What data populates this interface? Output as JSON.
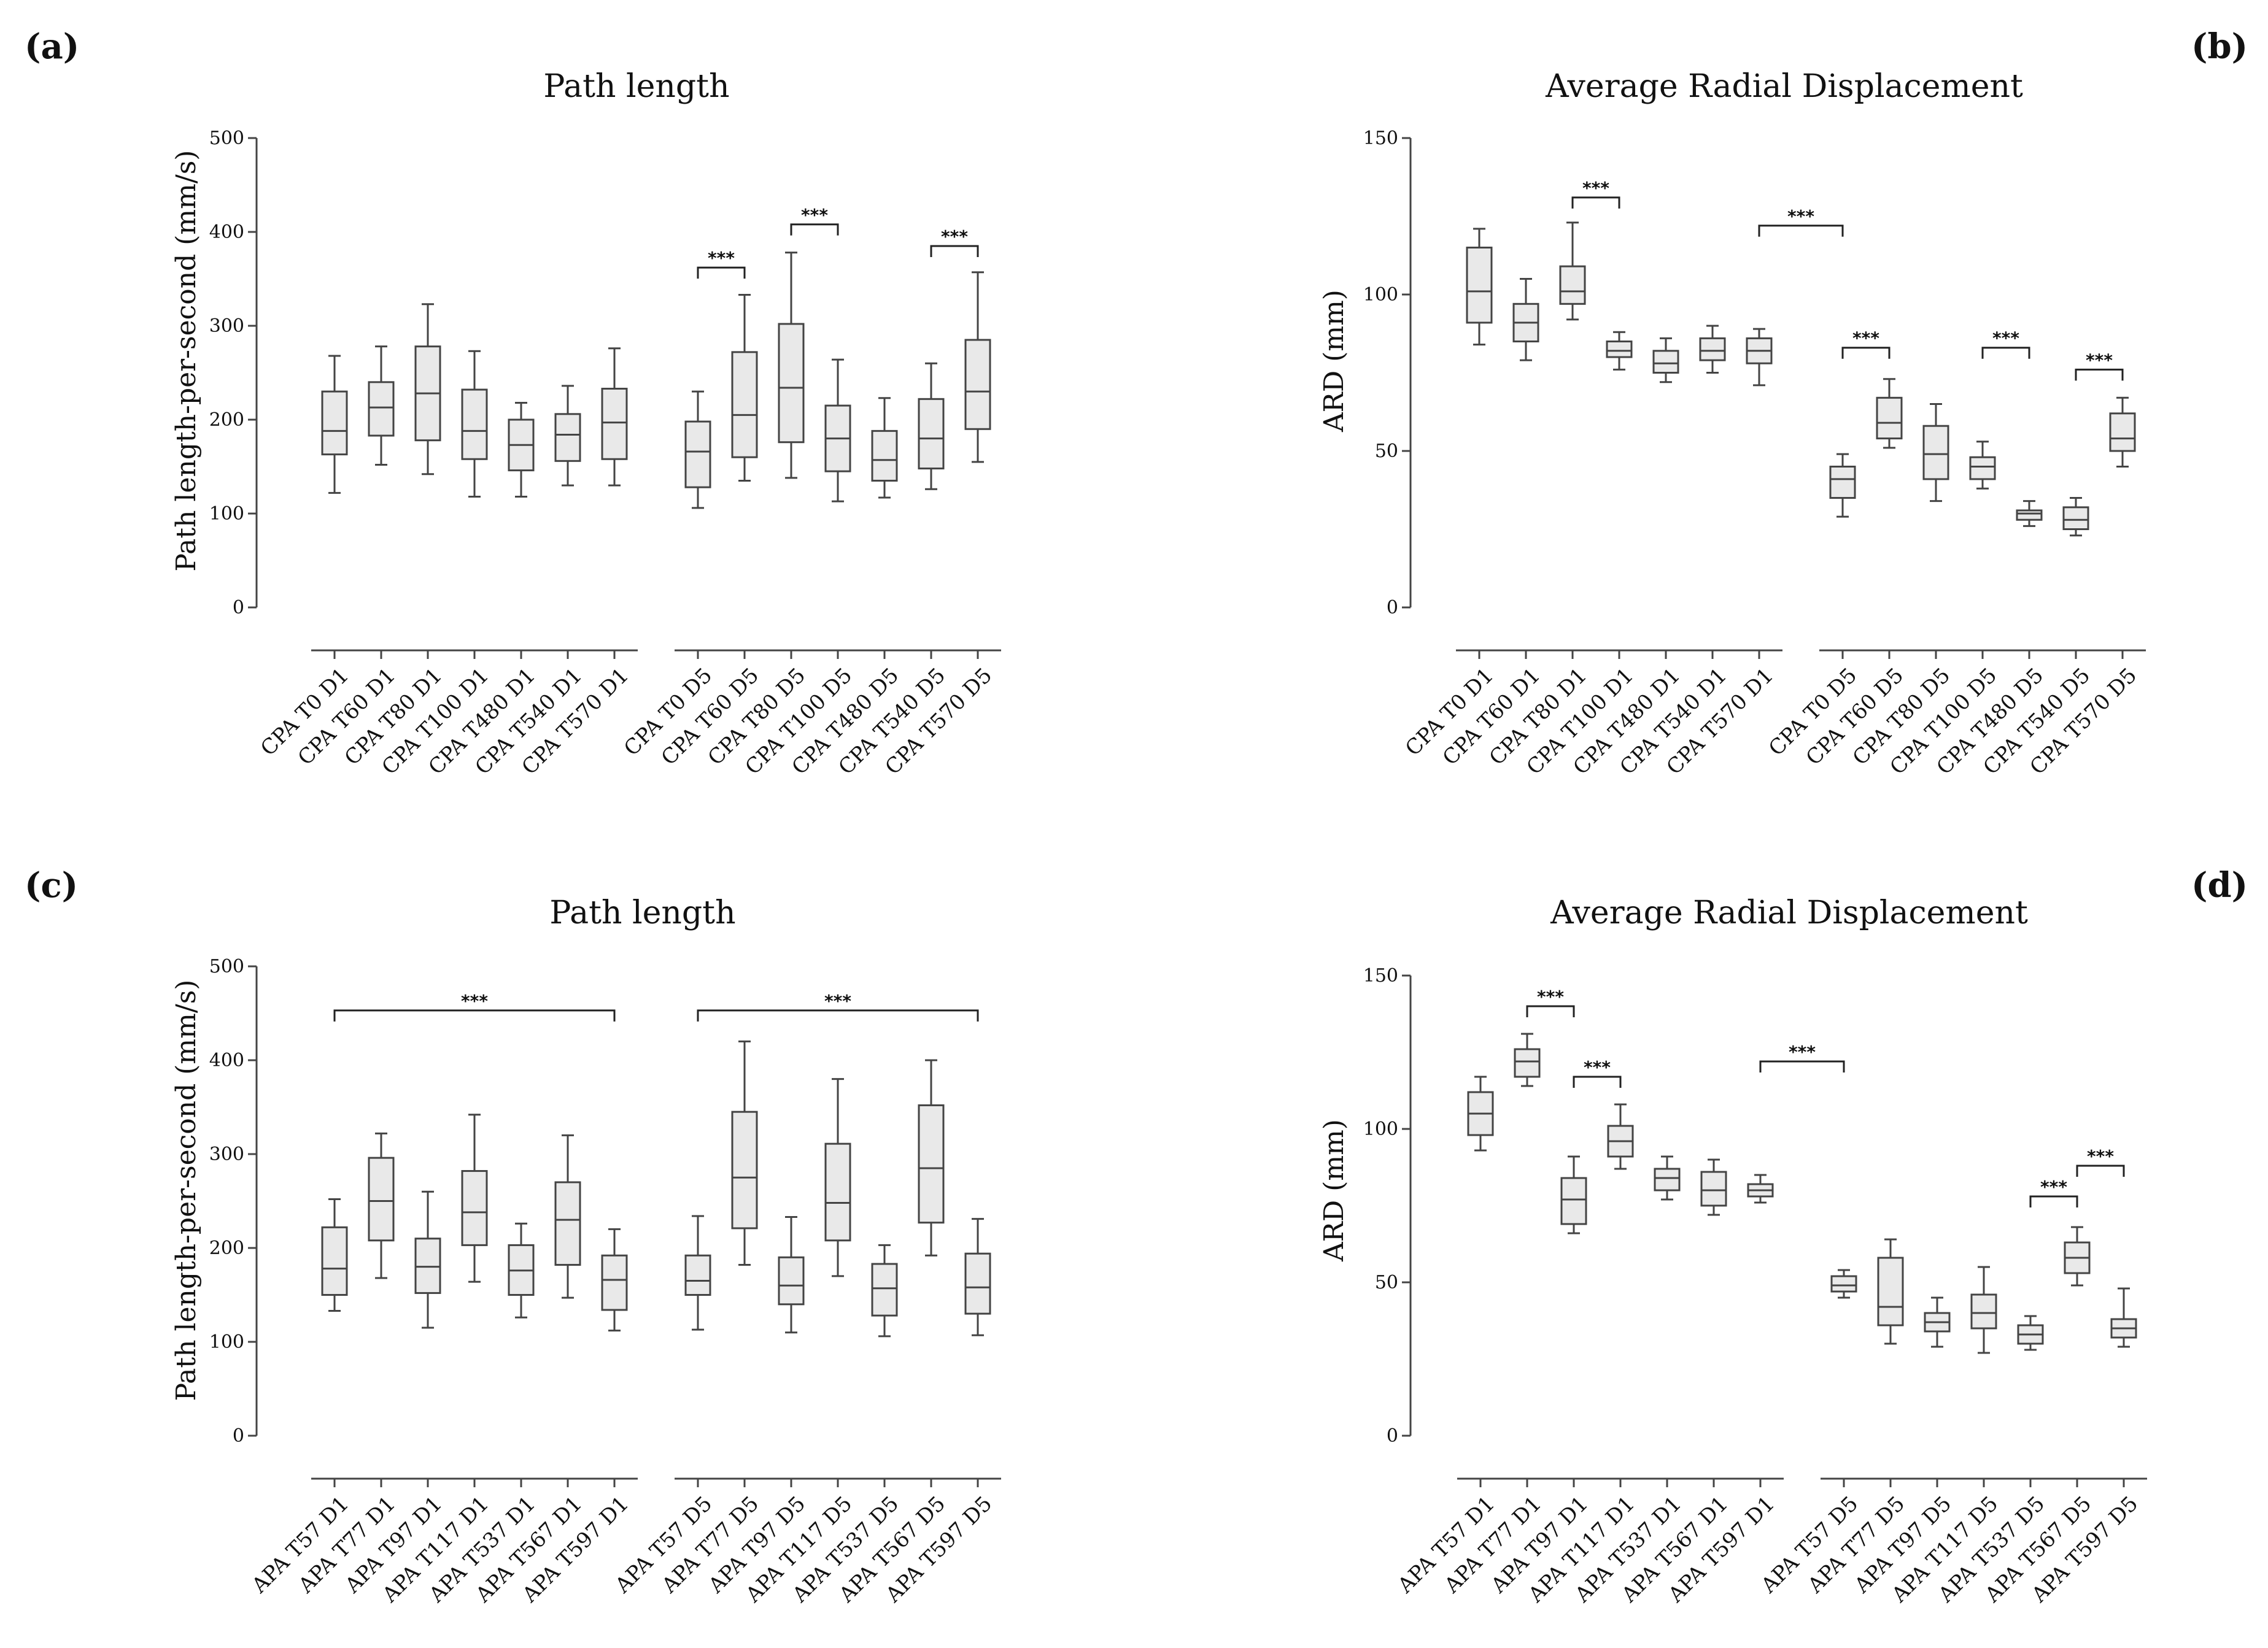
{
  "chart_data": [
    {
      "panel": "(a)",
      "type": "box",
      "title": "Path length",
      "ylabel": "Path length-per-second (mm/s)",
      "xlabel": "",
      "ylim": [
        0,
        500
      ],
      "yticks": [
        0,
        100,
        200,
        300,
        400,
        500
      ],
      "groups": [
        {
          "categories": [
            "CPA T0 D1",
            "CPA T60 D1",
            "CPA T80 D1",
            "CPA T100 D1",
            "CPA T480 D1",
            "CPA T540 D1",
            "CPA T570 D1"
          ],
          "boxes": [
            {
              "min": 122,
              "q1": 163,
              "median": 188,
              "q3": 230,
              "max": 268
            },
            {
              "min": 152,
              "q1": 183,
              "median": 213,
              "q3": 240,
              "max": 278
            },
            {
              "min": 142,
              "q1": 178,
              "median": 228,
              "q3": 278,
              "max": 323
            },
            {
              "min": 118,
              "q1": 158,
              "median": 188,
              "q3": 232,
              "max": 273
            },
            {
              "min": 118,
              "q1": 146,
              "median": 173,
              "q3": 200,
              "max": 218
            },
            {
              "min": 130,
              "q1": 156,
              "median": 184,
              "q3": 206,
              "max": 236
            },
            {
              "min": 130,
              "q1": 158,
              "median": 197,
              "q3": 233,
              "max": 276
            }
          ]
        },
        {
          "categories": [
            "CPA T0 D5",
            "CPA T60 D5",
            "CPA T80 D5",
            "CPA T100 D5",
            "CPA T480 D5",
            "CPA T540 D5",
            "CPA T570 D5"
          ],
          "boxes": [
            {
              "min": 106,
              "q1": 128,
              "median": 166,
              "q3": 198,
              "max": 230
            },
            {
              "min": 135,
              "q1": 160,
              "median": 205,
              "q3": 272,
              "max": 333
            },
            {
              "min": 138,
              "q1": 176,
              "median": 234,
              "q3": 302,
              "max": 378
            },
            {
              "min": 113,
              "q1": 145,
              "median": 180,
              "q3": 215,
              "max": 264
            },
            {
              "min": 117,
              "q1": 135,
              "median": 157,
              "q3": 188,
              "max": 223
            },
            {
              "min": 126,
              "q1": 148,
              "median": 180,
              "q3": 222,
              "max": 260
            },
            {
              "min": 155,
              "q1": 190,
              "median": 230,
              "q3": 285,
              "max": 357
            }
          ]
        }
      ],
      "annotations": [
        {
          "text": "***",
          "from": "CPA T0 D5",
          "to": "CPA T60 D5",
          "y": 362
        },
        {
          "text": "***",
          "from": "CPA T80 D5",
          "to": "CPA T100 D5",
          "y": 408
        },
        {
          "text": "***",
          "from": "CPA T540 D5",
          "to": "CPA T570 D5",
          "y": 385
        }
      ]
    },
    {
      "panel": "(b)",
      "type": "box",
      "title": "Average Radial Displacement",
      "ylabel": "ARD (mm)",
      "xlabel": "",
      "ylim": [
        0,
        150
      ],
      "yticks": [
        0,
        50,
        100,
        150
      ],
      "groups": [
        {
          "categories": [
            "CPA T0 D1",
            "CPA T60 D1",
            "CPA T80 D1",
            "CPA T100 D1",
            "CPA T480 D1",
            "CPA T540 D1",
            "CPA T570 D1"
          ],
          "boxes": [
            {
              "min": 84,
              "q1": 91,
              "median": 101,
              "q3": 115,
              "max": 121
            },
            {
              "min": 79,
              "q1": 85,
              "median": 91,
              "q3": 97,
              "max": 105
            },
            {
              "min": 92,
              "q1": 97,
              "median": 101,
              "q3": 109,
              "max": 123
            },
            {
              "min": 76,
              "q1": 80,
              "median": 82,
              "q3": 85,
              "max": 88
            },
            {
              "min": 72,
              "q1": 75,
              "median": 78,
              "q3": 82,
              "max": 86
            },
            {
              "min": 75,
              "q1": 79,
              "median": 82,
              "q3": 86,
              "max": 90
            },
            {
              "min": 71,
              "q1": 78,
              "median": 82,
              "q3": 86,
              "max": 89
            }
          ]
        },
        {
          "categories": [
            "CPA T0 D5",
            "CPA T60 D5",
            "CPA T80 D5",
            "CPA T100 D5",
            "CPA T480 D5",
            "CPA T540 D5",
            "CPA T570 D5"
          ],
          "boxes": [
            {
              "min": 29,
              "q1": 35,
              "median": 41,
              "q3": 45,
              "max": 49
            },
            {
              "min": 51,
              "q1": 54,
              "median": 59,
              "q3": 67,
              "max": 73
            },
            {
              "min": 34,
              "q1": 41,
              "median": 49,
              "q3": 58,
              "max": 65
            },
            {
              "min": 38,
              "q1": 41,
              "median": 45,
              "q3": 48,
              "max": 53
            },
            {
              "min": 26,
              "q1": 28,
              "median": 30,
              "q3": 31,
              "max": 34
            },
            {
              "min": 23,
              "q1": 25,
              "median": 28,
              "q3": 32,
              "max": 35
            },
            {
              "min": 45,
              "q1": 50,
              "median": 54,
              "q3": 62,
              "max": 67
            }
          ]
        }
      ],
      "annotations": [
        {
          "text": "***",
          "from": "CPA T80 D1",
          "to": "CPA T100 D1",
          "y": 131
        },
        {
          "text": "***",
          "from": "CPA T570 D1",
          "to": "CPA T0 D5",
          "y": 122
        },
        {
          "text": "***",
          "from": "CPA T0 D5",
          "to": "CPA T60 D5",
          "y": 83
        },
        {
          "text": "***",
          "from": "CPA T100 D5",
          "to": "CPA T480 D5",
          "y": 83
        },
        {
          "text": "***",
          "from": "CPA T540 D5",
          "to": "CPA T570 D5",
          "y": 76
        }
      ]
    },
    {
      "panel": "(c)",
      "type": "box",
      "title": "Path length",
      "ylabel": "Path length-per-second (mm/s)",
      "xlabel": "",
      "ylim": [
        0,
        500
      ],
      "yticks": [
        0,
        100,
        200,
        300,
        400,
        500
      ],
      "groups": [
        {
          "categories": [
            "APA T57 D1",
            "APA T77 D1",
            "APA T97 D1",
            "APA T117 D1",
            "APA T537 D1",
            "APA T567 D1",
            "APA T597 D1"
          ],
          "boxes": [
            {
              "min": 133,
              "q1": 150,
              "median": 178,
              "q3": 222,
              "max": 252
            },
            {
              "min": 168,
              "q1": 208,
              "median": 250,
              "q3": 296,
              "max": 322
            },
            {
              "min": 115,
              "q1": 152,
              "median": 180,
              "q3": 210,
              "max": 260
            },
            {
              "min": 164,
              "q1": 203,
              "median": 238,
              "q3": 282,
              "max": 342
            },
            {
              "min": 126,
              "q1": 150,
              "median": 176,
              "q3": 203,
              "max": 226
            },
            {
              "min": 147,
              "q1": 182,
              "median": 230,
              "q3": 270,
              "max": 320
            },
            {
              "min": 112,
              "q1": 134,
              "median": 166,
              "q3": 192,
              "max": 220
            }
          ]
        },
        {
          "categories": [
            "APA T57 D5",
            "APA T77 D5",
            "APA T97 D5",
            "APA T117 D5",
            "APA T537 D5",
            "APA T567 D5",
            "APA T597 D5"
          ],
          "boxes": [
            {
              "min": 113,
              "q1": 150,
              "median": 165,
              "q3": 192,
              "max": 234
            },
            {
              "min": 182,
              "q1": 221,
              "median": 275,
              "q3": 345,
              "max": 420
            },
            {
              "min": 110,
              "q1": 140,
              "median": 160,
              "q3": 190,
              "max": 233
            },
            {
              "min": 170,
              "q1": 208,
              "median": 248,
              "q3": 311,
              "max": 380
            },
            {
              "min": 106,
              "q1": 128,
              "median": 157,
              "q3": 183,
              "max": 203
            },
            {
              "min": 192,
              "q1": 227,
              "median": 285,
              "q3": 352,
              "max": 400
            },
            {
              "min": 107,
              "q1": 130,
              "median": 158,
              "q3": 194,
              "max": 231
            }
          ]
        }
      ],
      "annotations": [
        {
          "text": "***",
          "from": "APA T57 D1",
          "to": "APA T597 D1",
          "y": 453
        },
        {
          "text": "***",
          "from": "APA T57 D5",
          "to": "APA T597 D5",
          "y": 453
        }
      ]
    },
    {
      "panel": "(d)",
      "type": "box",
      "title": "Average Radial Displacement",
      "ylabel": "ARD (mm)",
      "xlabel": "",
      "ylim": [
        0,
        150
      ],
      "yticks": [
        0,
        50,
        100,
        150
      ],
      "groups": [
        {
          "categories": [
            "APA T57 D1",
            "APA T77 D1",
            "APA T97 D1",
            "APA T117 D1",
            "APA T537 D1",
            "APA T567 D1",
            "APA T597 D1"
          ],
          "boxes": [
            {
              "min": 93,
              "q1": 98,
              "median": 105,
              "q3": 112,
              "max": 117
            },
            {
              "min": 114,
              "q1": 117,
              "median": 122,
              "q3": 126,
              "max": 131
            },
            {
              "min": 66,
              "q1": 69,
              "median": 77,
              "q3": 84,
              "max": 91
            },
            {
              "min": 87,
              "q1": 91,
              "median": 96,
              "q3": 101,
              "max": 108
            },
            {
              "min": 77,
              "q1": 80,
              "median": 84,
              "q3": 87,
              "max": 91
            },
            {
              "min": 72,
              "q1": 75,
              "median": 80,
              "q3": 86,
              "max": 90
            },
            {
              "min": 76,
              "q1": 78,
              "median": 80,
              "q3": 82,
              "max": 85
            }
          ]
        },
        {
          "categories": [
            "APA T57 D5",
            "APA T77 D5",
            "APA T97 D5",
            "APA T117 D5",
            "APA T537 D5",
            "APA T567 D5",
            "APA T597 D5"
          ],
          "boxes": [
            {
              "min": 45,
              "q1": 47,
              "median": 49,
              "q3": 52,
              "max": 54
            },
            {
              "min": 30,
              "q1": 36,
              "median": 42,
              "q3": 58,
              "max": 64
            },
            {
              "min": 29,
              "q1": 34,
              "median": 37,
              "q3": 40,
              "max": 45
            },
            {
              "min": 27,
              "q1": 35,
              "median": 40,
              "q3": 46,
              "max": 55
            },
            {
              "min": 28,
              "q1": 30,
              "median": 33,
              "q3": 36,
              "max": 39
            },
            {
              "min": 49,
              "q1": 53,
              "median": 58,
              "q3": 63,
              "max": 68
            },
            {
              "min": 29,
              "q1": 32,
              "median": 35,
              "q3": 38,
              "max": 48
            }
          ]
        }
      ],
      "annotations": [
        {
          "text": "***",
          "from": "APA T77 D1",
          "to": "APA T97 D1",
          "y": 140
        },
        {
          "text": "***",
          "from": "APA T97 D1",
          "to": "APA T117 D1",
          "y": 117
        },
        {
          "text": "***",
          "from": "APA T597 D1",
          "to": "APA T57 D5",
          "y": 122
        },
        {
          "text": "***",
          "from": "APA T537 D5",
          "to": "APA T567 D5",
          "y": 78
        },
        {
          "text": "***",
          "from": "APA T567 D5",
          "to": "APA T597 D5",
          "y": 88
        }
      ]
    }
  ]
}
